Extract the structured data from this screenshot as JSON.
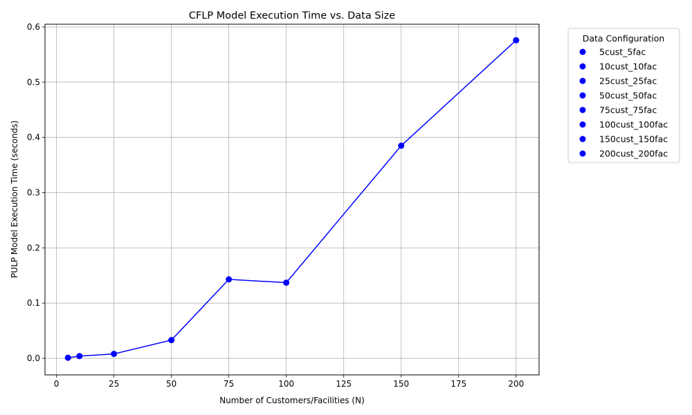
{
  "chart_data": {
    "type": "line",
    "title": "CFLP Model Execution Time vs. Data Size",
    "xlabel": "Number of Customers/Facilities (N)",
    "ylabel": "PULP Model Execution Time (seconds)",
    "xlim": [
      -5,
      210
    ],
    "ylim": [
      -0.03,
      0.605
    ],
    "xticks": [
      0,
      25,
      50,
      75,
      100,
      125,
      150,
      175,
      200
    ],
    "xtick_labels": [
      "0",
      "25",
      "50",
      "75",
      "100",
      "125",
      "150",
      "175",
      "200"
    ],
    "yticks": [
      0.0,
      0.1,
      0.2,
      0.3,
      0.4,
      0.5,
      0.6
    ],
    "ytick_labels": [
      "0.0",
      "0.1",
      "0.2",
      "0.3",
      "0.4",
      "0.5",
      "0.6"
    ],
    "grid": true,
    "line_color": "#0000ff",
    "marker_color": "#0000ff",
    "x": [
      5,
      10,
      25,
      50,
      75,
      100,
      150,
      200
    ],
    "y": [
      0.001,
      0.004,
      0.008,
      0.033,
      0.143,
      0.137,
      0.385,
      0.576
    ],
    "legend": {
      "title": "Data Configuration",
      "placement": "outside-top-right",
      "entries": [
        "5cust_5fac",
        "10cust_10fac",
        "25cust_25fac",
        "50cust_50fac",
        "75cust_75fac",
        "100cust_100fac",
        "150cust_150fac",
        "200cust_200fac"
      ]
    }
  }
}
